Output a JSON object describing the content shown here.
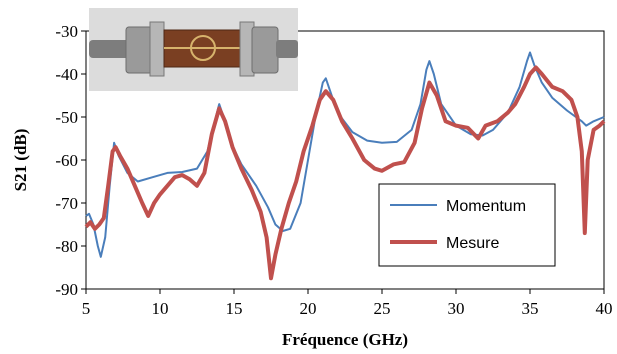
{
  "chart_data": {
    "type": "line",
    "title": "",
    "xlabel": "Fréquence (GHz)",
    "ylabel": "S21 (dB)",
    "xlim": [
      5,
      40
    ],
    "ylim": [
      -90,
      -30
    ],
    "x_ticks": [
      5,
      10,
      15,
      20,
      25,
      30,
      35,
      40
    ],
    "y_ticks": [
      -90,
      -80,
      -70,
      -60,
      -50,
      -40,
      -30
    ],
    "grid": false,
    "legend_position": "bottom-right",
    "inset_image": "photo of microstrip test fixture with SMA connectors (top-left)",
    "series": [
      {
        "name": "Momentum",
        "color": "#4a7ebb",
        "points": [
          [
            5.0,
            -73
          ],
          [
            5.2,
            -72.5
          ],
          [
            5.5,
            -75
          ],
          [
            5.8,
            -80
          ],
          [
            6.0,
            -82.5
          ],
          [
            6.3,
            -78
          ],
          [
            6.6,
            -66
          ],
          [
            6.9,
            -56
          ],
          [
            7.2,
            -59
          ],
          [
            7.8,
            -63
          ],
          [
            8.5,
            -65
          ],
          [
            9.5,
            -64
          ],
          [
            10.5,
            -63
          ],
          [
            11.5,
            -62.8
          ],
          [
            12.5,
            -62
          ],
          [
            13.2,
            -58
          ],
          [
            13.7,
            -51
          ],
          [
            14.0,
            -47
          ],
          [
            14.3,
            -50
          ],
          [
            14.8,
            -56
          ],
          [
            15.5,
            -61
          ],
          [
            16.5,
            -66
          ],
          [
            17.3,
            -71
          ],
          [
            17.8,
            -75
          ],
          [
            18.3,
            -76.5
          ],
          [
            18.8,
            -76
          ],
          [
            19.5,
            -70
          ],
          [
            20.0,
            -60
          ],
          [
            20.5,
            -50
          ],
          [
            21.0,
            -42
          ],
          [
            21.2,
            -41
          ],
          [
            21.5,
            -44
          ],
          [
            22.0,
            -49
          ],
          [
            23.0,
            -53.5
          ],
          [
            24.0,
            -55.5
          ],
          [
            25.0,
            -56
          ],
          [
            26.0,
            -55.8
          ],
          [
            27.0,
            -53
          ],
          [
            27.6,
            -47
          ],
          [
            28.0,
            -39
          ],
          [
            28.2,
            -37
          ],
          [
            28.5,
            -40
          ],
          [
            29.0,
            -47
          ],
          [
            30.0,
            -52
          ],
          [
            31.0,
            -54
          ],
          [
            31.8,
            -54.3
          ],
          [
            32.5,
            -53
          ],
          [
            33.5,
            -49
          ],
          [
            34.3,
            -43
          ],
          [
            34.8,
            -37
          ],
          [
            35.0,
            -35
          ],
          [
            35.3,
            -38
          ],
          [
            35.8,
            -42
          ],
          [
            36.5,
            -45.5
          ],
          [
            37.5,
            -48.5
          ],
          [
            38.5,
            -51
          ],
          [
            38.8,
            -52
          ],
          [
            39.3,
            -51
          ],
          [
            40.0,
            -50
          ]
        ]
      },
      {
        "name": "Mesure",
        "color": "#c0504d",
        "points": [
          [
            5.0,
            -75.5
          ],
          [
            5.3,
            -74.5
          ],
          [
            5.6,
            -76
          ],
          [
            5.9,
            -75
          ],
          [
            6.2,
            -73.5
          ],
          [
            6.5,
            -66
          ],
          [
            6.8,
            -58
          ],
          [
            7.0,
            -57
          ],
          [
            7.3,
            -59
          ],
          [
            7.8,
            -62
          ],
          [
            8.3,
            -66
          ],
          [
            8.8,
            -70
          ],
          [
            9.2,
            -73
          ],
          [
            9.6,
            -70
          ],
          [
            10.0,
            -68
          ],
          [
            10.5,
            -66
          ],
          [
            11.0,
            -64
          ],
          [
            11.5,
            -63.5
          ],
          [
            12.0,
            -64.5
          ],
          [
            12.5,
            -66
          ],
          [
            13.0,
            -63
          ],
          [
            13.5,
            -54
          ],
          [
            14.0,
            -48
          ],
          [
            14.4,
            -51
          ],
          [
            14.9,
            -57
          ],
          [
            15.5,
            -62
          ],
          [
            16.2,
            -67
          ],
          [
            16.8,
            -72
          ],
          [
            17.2,
            -78
          ],
          [
            17.5,
            -87.5
          ],
          [
            17.8,
            -82
          ],
          [
            18.2,
            -76
          ],
          [
            18.7,
            -70
          ],
          [
            19.2,
            -65
          ],
          [
            19.7,
            -58
          ],
          [
            20.3,
            -52
          ],
          [
            20.8,
            -46
          ],
          [
            21.2,
            -44
          ],
          [
            21.7,
            -46
          ],
          [
            22.3,
            -51
          ],
          [
            23.0,
            -55
          ],
          [
            23.8,
            -60
          ],
          [
            24.5,
            -62
          ],
          [
            25.0,
            -62.5
          ],
          [
            25.8,
            -61
          ],
          [
            26.5,
            -60.5
          ],
          [
            27.2,
            -56
          ],
          [
            27.7,
            -48
          ],
          [
            28.2,
            -42
          ],
          [
            28.7,
            -45
          ],
          [
            29.3,
            -51
          ],
          [
            30.0,
            -52
          ],
          [
            30.8,
            -52.5
          ],
          [
            31.5,
            -55
          ],
          [
            32.0,
            -52
          ],
          [
            32.8,
            -51
          ],
          [
            33.5,
            -49
          ],
          [
            34.0,
            -47
          ],
          [
            34.6,
            -43
          ],
          [
            35.0,
            -40
          ],
          [
            35.4,
            -38.5
          ],
          [
            35.8,
            -40
          ],
          [
            36.5,
            -43
          ],
          [
            37.2,
            -44
          ],
          [
            37.8,
            -46
          ],
          [
            38.2,
            -50
          ],
          [
            38.5,
            -58
          ],
          [
            38.7,
            -77
          ],
          [
            38.9,
            -60
          ],
          [
            39.3,
            -53
          ],
          [
            39.7,
            -52
          ],
          [
            40.0,
            -51
          ]
        ]
      }
    ]
  }
}
